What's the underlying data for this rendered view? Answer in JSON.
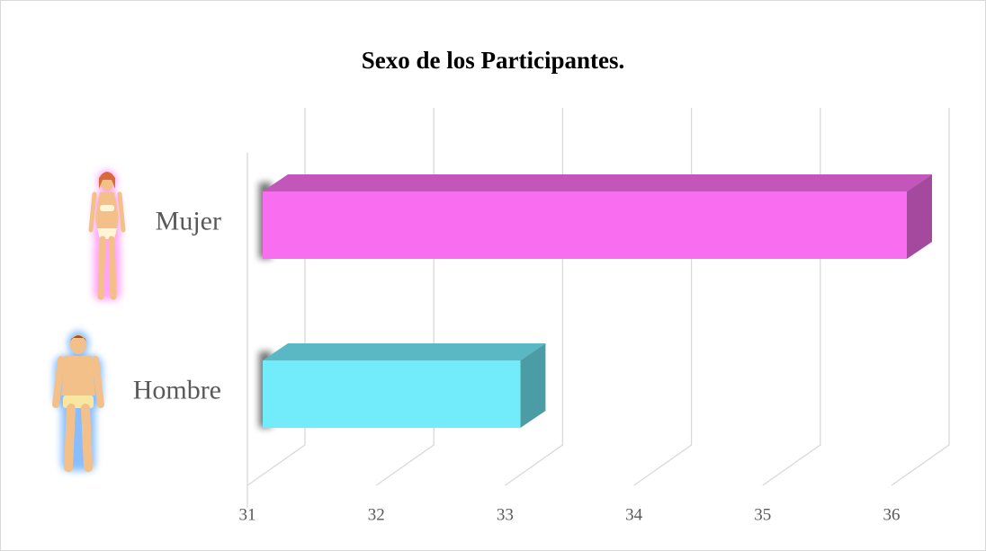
{
  "chart_data": {
    "type": "bar3d",
    "title": "Sexo de los Participantes.",
    "categories": [
      "Mujer",
      "Hombre"
    ],
    "values": [
      36,
      33
    ],
    "colors": [
      "#f96ef0",
      "#72ecfa"
    ],
    "xlim": [
      31,
      36
    ],
    "xticks": [
      31,
      32,
      33,
      34,
      35,
      36
    ],
    "grid": true
  }
}
